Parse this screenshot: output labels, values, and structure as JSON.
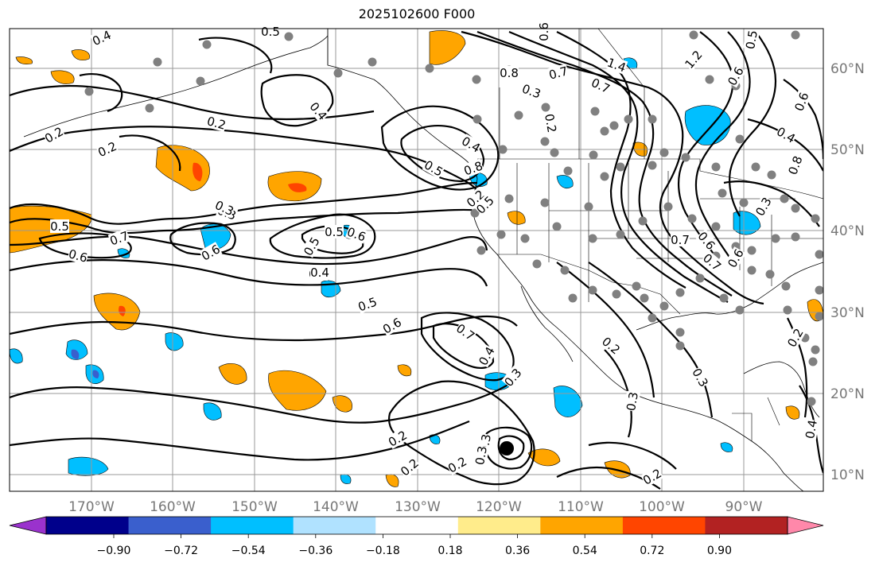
{
  "title": "2025102600 F000",
  "latitude_labels": [
    "60°N",
    "50°N",
    "40°N",
    "30°N",
    "20°N",
    "10°N"
  ],
  "longitude_labels": [
    "170°W",
    "160°W",
    "150°W",
    "140°W",
    "130°W",
    "120°W",
    "110°W",
    "100°W",
    "90°W"
  ],
  "colorbar": {
    "tick_labels": [
      "−0.90",
      "−0.72",
      "−0.54",
      "−0.36",
      "−0.18",
      "0.18",
      "0.36",
      "0.54",
      "0.72",
      "0.90"
    ],
    "colors": [
      "#9a32cd",
      "#00008b",
      "#3a5fcd",
      "#00bfff",
      "#b0e2ff",
      "#ffffff",
      "#ffec8b",
      "#ffa500",
      "#ff4500",
      "#b22222",
      "#ff88aa"
    ]
  },
  "contour_labels": [
    "0.4",
    "0.5",
    "0.3",
    "0.2",
    "0.4",
    "0.2",
    "0.2",
    "0.5",
    "0.7",
    "0.6",
    "0.6",
    "0.4",
    "0.3",
    "0.6",
    "0.5",
    "0.5",
    "0.4",
    "0.5",
    "0.6",
    "0.7",
    "0.4",
    "0.3",
    "0.3",
    "0.2",
    "0.2",
    "0.2",
    "0.3",
    "0.2",
    "0.5",
    "0.8",
    "0.7",
    "1.4",
    "0.3",
    "0.7",
    "1.2",
    "0.6",
    "0.5",
    "0.6",
    "0.8",
    "0.4",
    "0.6",
    "0.7",
    "0.6",
    "0.7",
    "0.2",
    "0.3",
    "0.2",
    "0.3",
    "0.4",
    "0.2",
    "0.5",
    "0.8",
    "0.4",
    "0.6",
    "0.2",
    "0.3"
  ],
  "colors": {
    "contour": "#000000",
    "grid": "#999999",
    "station": "#808080",
    "marker": "#000000"
  },
  "icons": {
    "marker": "black-dot-marker"
  }
}
